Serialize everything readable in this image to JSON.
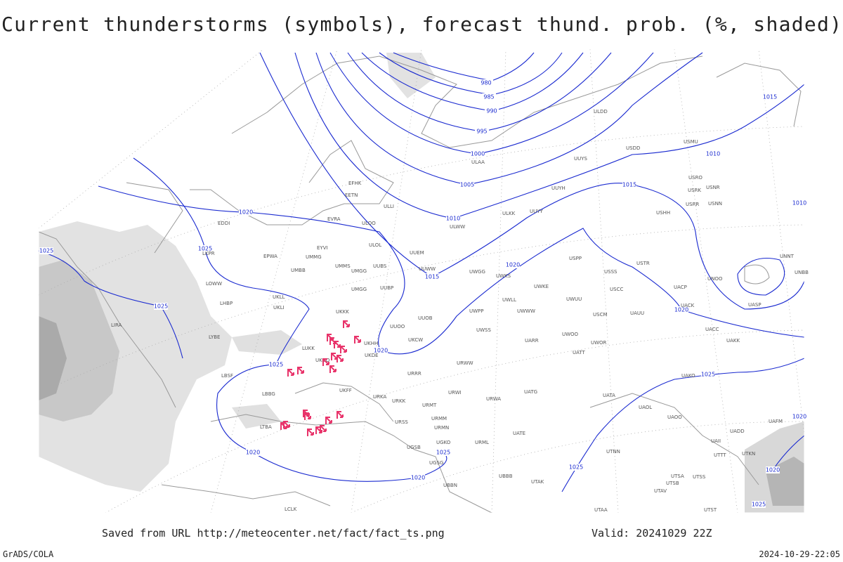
{
  "title": "Current thunderstorms (symbols), forecast thund. prob. (%, shaded)",
  "footer": {
    "saved": "Saved from URL http://meteocenter.net/fact/fact_ts.png",
    "valid": "Valid: 20241029 22Z",
    "left": "GrADS/COLA",
    "right": "2024-10-29-22:05"
  },
  "isobar_labels": [
    "980",
    "985",
    "990",
    "995",
    "1000",
    "1005",
    "1010",
    "1015",
    "1020",
    "1015",
    "1010",
    "1015",
    "1010",
    "1020",
    "1025",
    "1025",
    "1025",
    "1025",
    "1020",
    "1020",
    "1025",
    "1025",
    "1020",
    "1020",
    "1025",
    "1020",
    "1025",
    "1020"
  ],
  "stations": [
    "ULOO",
    "EVRA",
    "ULOL",
    "EYVI",
    "UMMG",
    "EPWA",
    "UMBB",
    "UMMS",
    "UMGG",
    "UUBS",
    "UUEM",
    "UUWW",
    "UWGG",
    "UWKS",
    "UKLL",
    "UKLI",
    "UMGG",
    "UUBP",
    "UKKK",
    "UUOO",
    "UUOB",
    "UWPP",
    "LKPR",
    "LOWW",
    "LHBP",
    "LYBE",
    "LBSF",
    "LBBG",
    "LTBA",
    "LIRA",
    "EDDI",
    "EFHK",
    "EETN",
    "ULLI",
    "ULAA",
    "ULWW",
    "ULKK",
    "UUYY",
    "UUYH",
    "UUYS",
    "ULDD",
    "USDD",
    "USMU",
    "USRO",
    "USRK",
    "USNR",
    "USRR",
    "USNN",
    "USHH",
    "USPP",
    "USSS",
    "USTR",
    "USCC",
    "UACP",
    "UACK",
    "UNOO",
    "UNNT",
    "UNBB",
    "UASP",
    "UACC",
    "UAKK",
    "UATT",
    "UWOR",
    "UWOO",
    "UARR",
    "UWKE",
    "UWUU",
    "UWWW",
    "UWLL",
    "USCM",
    "UAUU",
    "UWSS",
    "URWW",
    "UKHH",
    "UKDE",
    "UKCW",
    "URRR",
    "UKFF",
    "URKA",
    "URKK",
    "URMT",
    "URWI",
    "URWA",
    "UATG",
    "URMM",
    "URMN",
    "URSS",
    "UGSB",
    "UGKO",
    "UGSG",
    "UBBB",
    "UBBN",
    "UTAK",
    "URML",
    "UATE",
    "UATA",
    "UAOL",
    "UAOO",
    "UAKO",
    "UTNN",
    "UTSA",
    "UTSB",
    "UTAV",
    "UTSS",
    "UTST",
    "UTAA",
    "UADD",
    "UAFM",
    "UTKN",
    "UTTT",
    "UAII",
    "LCLK",
    "LUKK",
    "UKOO"
  ]
}
